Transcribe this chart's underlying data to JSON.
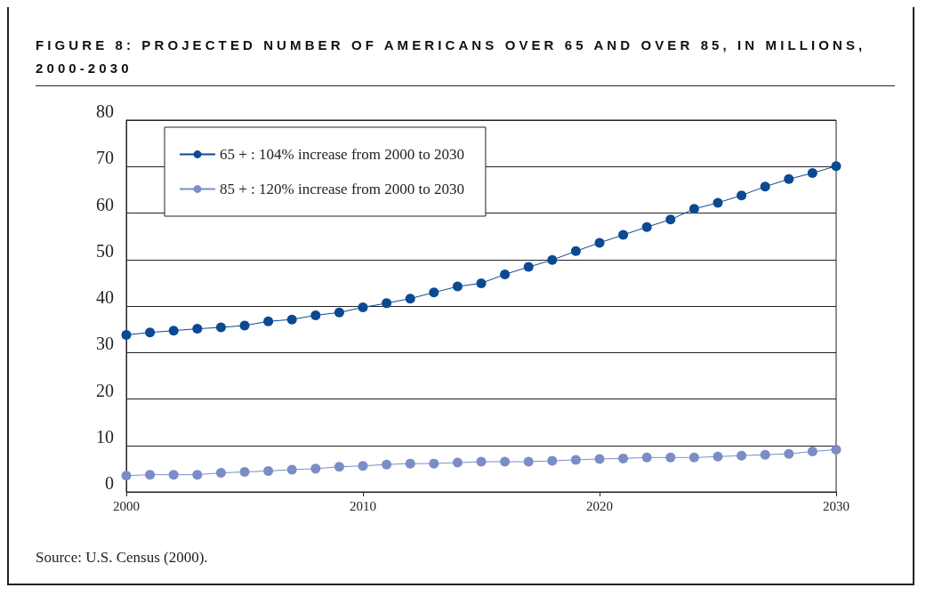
{
  "chart_data": {
    "type": "line",
    "title": "FIGURE 8: PROJECTED NUMBER OF AMERICANS OVER 65 AND OVER 85, IN MILLIONS, 2000-2030",
    "x": [
      2000,
      2001,
      2002,
      2003,
      2004,
      2005,
      2006,
      2007,
      2008,
      2009,
      2010,
      2011,
      2012,
      2013,
      2014,
      2015,
      2016,
      2017,
      2018,
      2019,
      2020,
      2021,
      2022,
      2023,
      2024,
      2025,
      2026,
      2027,
      2028,
      2029,
      2030
    ],
    "series": [
      {
        "name": "65 + : 104% increase from 2000 to 2030",
        "color": "#0b4a92",
        "values": [
          33.8,
          34.3,
          34.7,
          35.1,
          35.4,
          35.8,
          36.7,
          37.1,
          38.0,
          38.6,
          39.7,
          40.6,
          41.6,
          42.9,
          44.2,
          44.9,
          46.8,
          48.4,
          49.9,
          51.8,
          53.6,
          55.3,
          57.0,
          58.6,
          60.9,
          62.2,
          63.8,
          65.7,
          67.3,
          68.6,
          70.1
        ]
      },
      {
        "name": "85 + : 120% increase from 2000 to 2030",
        "color": "#7b8dc6",
        "values": [
          3.5,
          3.7,
          3.7,
          3.7,
          4.1,
          4.3,
          4.5,
          4.8,
          5.0,
          5.4,
          5.6,
          5.9,
          6.1,
          6.1,
          6.3,
          6.5,
          6.5,
          6.5,
          6.7,
          6.9,
          7.1,
          7.2,
          7.4,
          7.4,
          7.4,
          7.6,
          7.8,
          8.0,
          8.2,
          8.7,
          9.1
        ]
      }
    ],
    "xlim": [
      2000,
      2030
    ],
    "xticks": [
      2000,
      2010,
      2020,
      2030
    ],
    "ylim": [
      0,
      80
    ],
    "yticks": [
      0,
      10,
      20,
      30,
      40,
      50,
      60,
      70,
      80
    ],
    "grid": "y",
    "legend": "top left",
    "marker": "circle",
    "line_style": "solid",
    "annotations": [
      "Source: U.S. Census (2000)."
    ]
  }
}
